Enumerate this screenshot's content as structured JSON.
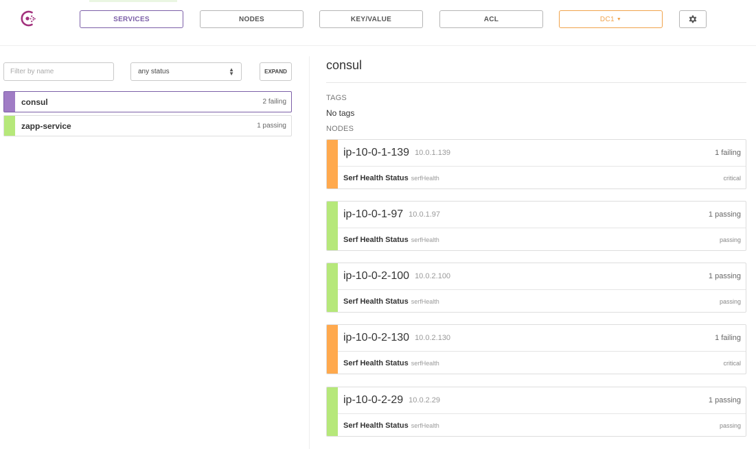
{
  "nav": {
    "services": "SERVICES",
    "nodes": "NODES",
    "key_value": "KEY/VALUE",
    "acl": "ACL",
    "datacenter": "DC1",
    "settings_icon": "gear-icon",
    "logo_icon": "consul-logo-icon"
  },
  "filters": {
    "name_placeholder": "Filter by name",
    "name_value": "",
    "status_selected": "any status",
    "expand_label": "EXPAND"
  },
  "services": [
    {
      "name": "consul",
      "count": "2 failing",
      "status": "critical",
      "selected": true
    },
    {
      "name": "zapp-service",
      "count": "1 passing",
      "status": "passing",
      "selected": false
    }
  ],
  "detail": {
    "title": "consul",
    "tags_label": "TAGS",
    "tags_value": "No tags",
    "nodes_label": "NODES",
    "nodes": [
      {
        "name": "ip-10-0-1-139",
        "address": "10.0.1.139",
        "count": "1 failing",
        "check": "Serf Health Status",
        "check_id": "serfHealth",
        "check_status": "critical"
      },
      {
        "name": "ip-10-0-1-97",
        "address": "10.0.1.97",
        "count": "1 passing",
        "check": "Serf Health Status",
        "check_id": "serfHealth",
        "check_status": "passing"
      },
      {
        "name": "ip-10-0-2-100",
        "address": "10.0.2.100",
        "count": "1 passing",
        "check": "Serf Health Status",
        "check_id": "serfHealth",
        "check_status": "passing"
      },
      {
        "name": "ip-10-0-2-130",
        "address": "10.0.2.130",
        "count": "1 failing",
        "check": "Serf Health Status",
        "check_id": "serfHealth",
        "check_status": "critical"
      },
      {
        "name": "ip-10-0-2-29",
        "address": "10.0.2.29",
        "count": "1 passing",
        "check": "Serf Health Status",
        "check_id": "serfHealth",
        "check_status": "passing"
      }
    ]
  },
  "colors": {
    "accent": "#7b5ea7",
    "datacenter": "#f0a24a",
    "critical": "#ffa94d",
    "passing": "#b6e87a",
    "service_critical": "#a07cc5"
  }
}
